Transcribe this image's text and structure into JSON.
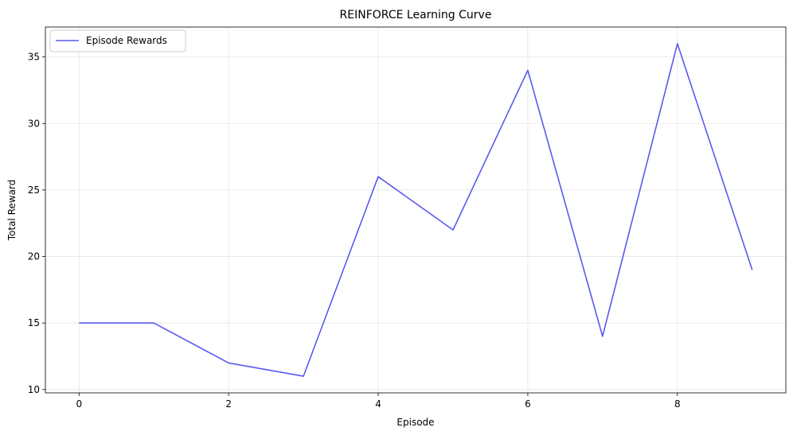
{
  "chart_data": {
    "type": "line",
    "title": "REINFORCE Learning Curve",
    "xlabel": "Episode",
    "ylabel": "Total Reward",
    "xlim": [
      -0.45,
      9.45
    ],
    "ylim": [
      9.75,
      37.25
    ],
    "xticks": [
      0,
      2,
      4,
      6,
      8
    ],
    "yticks": [
      10,
      15,
      20,
      25,
      30,
      35
    ],
    "grid": true,
    "legend_position": "top-left",
    "series": [
      {
        "name": "Episode Rewards",
        "color": "#5a5af0",
        "x": [
          0,
          1,
          2,
          3,
          4,
          5,
          6,
          7,
          8,
          9
        ],
        "y": [
          15,
          15,
          12,
          11,
          26,
          22,
          34,
          14,
          36,
          19
        ]
      }
    ]
  }
}
